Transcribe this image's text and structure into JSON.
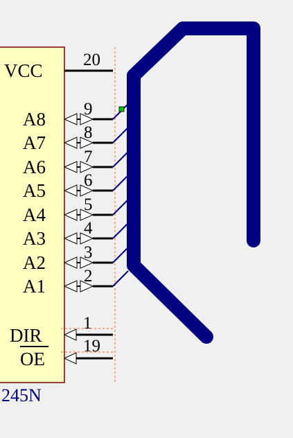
{
  "chip": {
    "name": "245N",
    "body_color": "#ffffc0",
    "border_color": "#800000",
    "name_color": "#000080"
  },
  "pins": {
    "vcc": {
      "label": "VCC",
      "number": "20"
    },
    "a8": {
      "label": "A8",
      "number": "9"
    },
    "a7": {
      "label": "A7",
      "number": "8"
    },
    "a6": {
      "label": "A6",
      "number": "7"
    },
    "a5": {
      "label": "A5",
      "number": "6"
    },
    "a4": {
      "label": "A4",
      "number": "5"
    },
    "a3": {
      "label": "A3",
      "number": "4"
    },
    "a2": {
      "label": "A2",
      "number": "3"
    },
    "a1": {
      "label": "A1",
      "number": "2"
    },
    "dir": {
      "label": "DIR",
      "number": "1"
    },
    "oe": {
      "label": "OE",
      "number": "19"
    }
  },
  "colors": {
    "bus": "#000080",
    "wire": "#000080",
    "pin_line": "#000000",
    "guide": "#ff8040",
    "selection_handle": "#00c000"
  }
}
